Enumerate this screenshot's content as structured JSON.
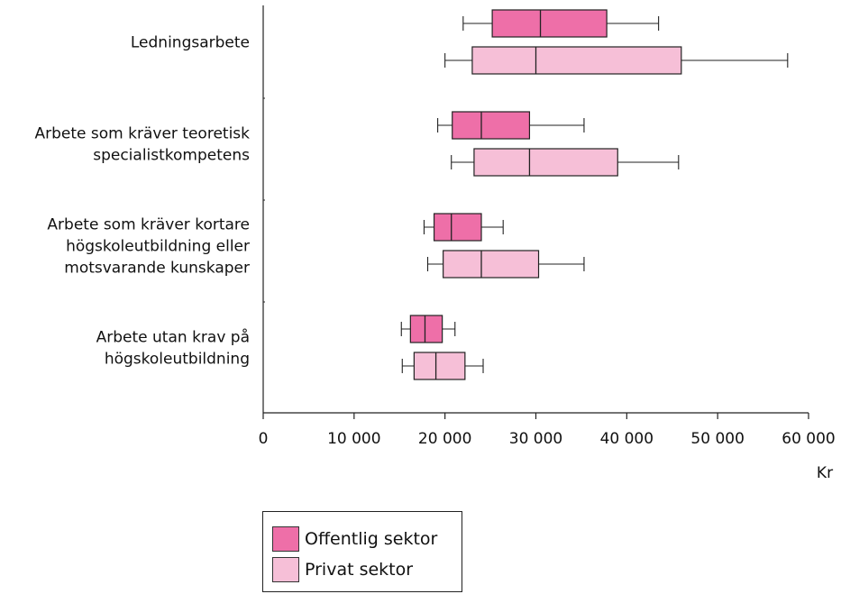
{
  "chart_data": {
    "type": "boxplot",
    "orientation": "horizontal",
    "unit_label": "Kr",
    "xlim": [
      0,
      60000
    ],
    "x_ticks": [
      0,
      10000,
      20000,
      30000,
      40000,
      50000,
      60000
    ],
    "x_tick_labels": [
      "0",
      "10 000",
      "20 000",
      "30 000",
      "40 000",
      "50 000",
      "60 000"
    ],
    "categories": [
      {
        "name": "Ledningsarbete",
        "label_lines": [
          "Ledningsarbete"
        ],
        "series": [
          {
            "name": "Offentlig sektor",
            "min": 22000,
            "q1": 25200,
            "median": 30500,
            "q3": 37800,
            "max": 43500
          },
          {
            "name": "Privat sektor",
            "min": 20000,
            "q1": 23000,
            "median": 30000,
            "q3": 46000,
            "max": 57700
          }
        ]
      },
      {
        "name": "Arbete som kräver teoretisk specialistkompetens",
        "label_lines": [
          "Arbete som kräver teoretisk",
          "specialistkompetens"
        ],
        "series": [
          {
            "name": "Offentlig sektor",
            "min": 19200,
            "q1": 20800,
            "median": 24000,
            "q3": 29300,
            "max": 35300
          },
          {
            "name": "Privat sektor",
            "min": 20700,
            "q1": 23200,
            "median": 29300,
            "q3": 39000,
            "max": 45700
          }
        ]
      },
      {
        "name": "Arbete som kräver kortare högskoleutbildning eller motsvarande kunskaper",
        "label_lines": [
          "Arbete som kräver kortare",
          "högskoleutbildning eller",
          "motsvarande kunskaper"
        ],
        "series": [
          {
            "name": "Offentlig sektor",
            "min": 17700,
            "q1": 18800,
            "median": 20700,
            "q3": 24000,
            "max": 26400
          },
          {
            "name": "Privat sektor",
            "min": 18100,
            "q1": 19800,
            "median": 24000,
            "q3": 30300,
            "max": 35300
          }
        ]
      },
      {
        "name": "Arbete utan krav på högskoleutbildning",
        "label_lines": [
          "Arbete utan krav på",
          "högskoleutbildning"
        ],
        "series": [
          {
            "name": "Offentlig sektor",
            "min": 15200,
            "q1": 16200,
            "median": 17800,
            "q3": 19700,
            "max": 21100
          },
          {
            "name": "Privat sektor",
            "min": 15300,
            "q1": 16600,
            "median": 19000,
            "q3": 22200,
            "max": 24200
          }
        ]
      }
    ],
    "legend": {
      "position": "bottom-center",
      "items": [
        {
          "name": "Offentlig sektor",
          "color": "#ee6fa8"
        },
        {
          "name": "Privat sektor",
          "color": "#f6bfd7"
        }
      ]
    },
    "colors": {
      "Offentlig sektor": "#ee6fa8",
      "Privat sektor": "#f6bfd7",
      "stroke": "#222222"
    },
    "grid": false
  },
  "legend": {
    "items": [
      {
        "label": "Offentlig sektor",
        "color": "#ee6fa8"
      },
      {
        "label": "Privat sektor",
        "color": "#f6bfd7"
      }
    ]
  }
}
